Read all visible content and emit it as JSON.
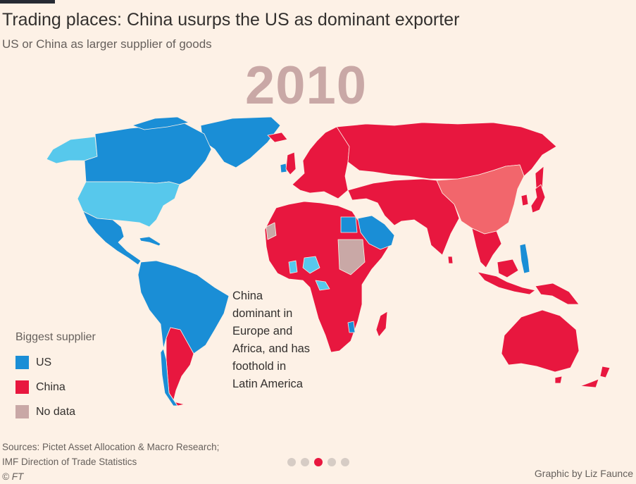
{
  "header": {
    "title": "Trading places: China usurps the US as dominant exporter",
    "subtitle": "US or China as larger supplier of goods",
    "year": "2010"
  },
  "colors": {
    "us": "#1a8ed6",
    "us_light": "#57c8ec",
    "china": "#e8173f",
    "china_light": "#f2666c",
    "no_data": "#c9a8a6",
    "background": "#fdf1e6"
  },
  "annotation": {
    "lines": [
      "China",
      "dominant in",
      "Europe and",
      "Africa, and has",
      "foothold in",
      "Latin America"
    ]
  },
  "legend": {
    "title": "Biggest supplier",
    "items": [
      {
        "label": "US",
        "color": "#1a8ed6"
      },
      {
        "label": "China",
        "color": "#e8173f"
      },
      {
        "label": "No data",
        "color": "#c9a8a6"
      }
    ]
  },
  "footer": {
    "sources_line1": "Sources: Pictet Asset Allocation & Macro Research;",
    "sources_line2": "IMF Direction of Trade Statistics",
    "copyright": "© FT",
    "credit": "Graphic by Liz Faunce"
  },
  "pagination": {
    "total": 5,
    "active_index": 2
  }
}
